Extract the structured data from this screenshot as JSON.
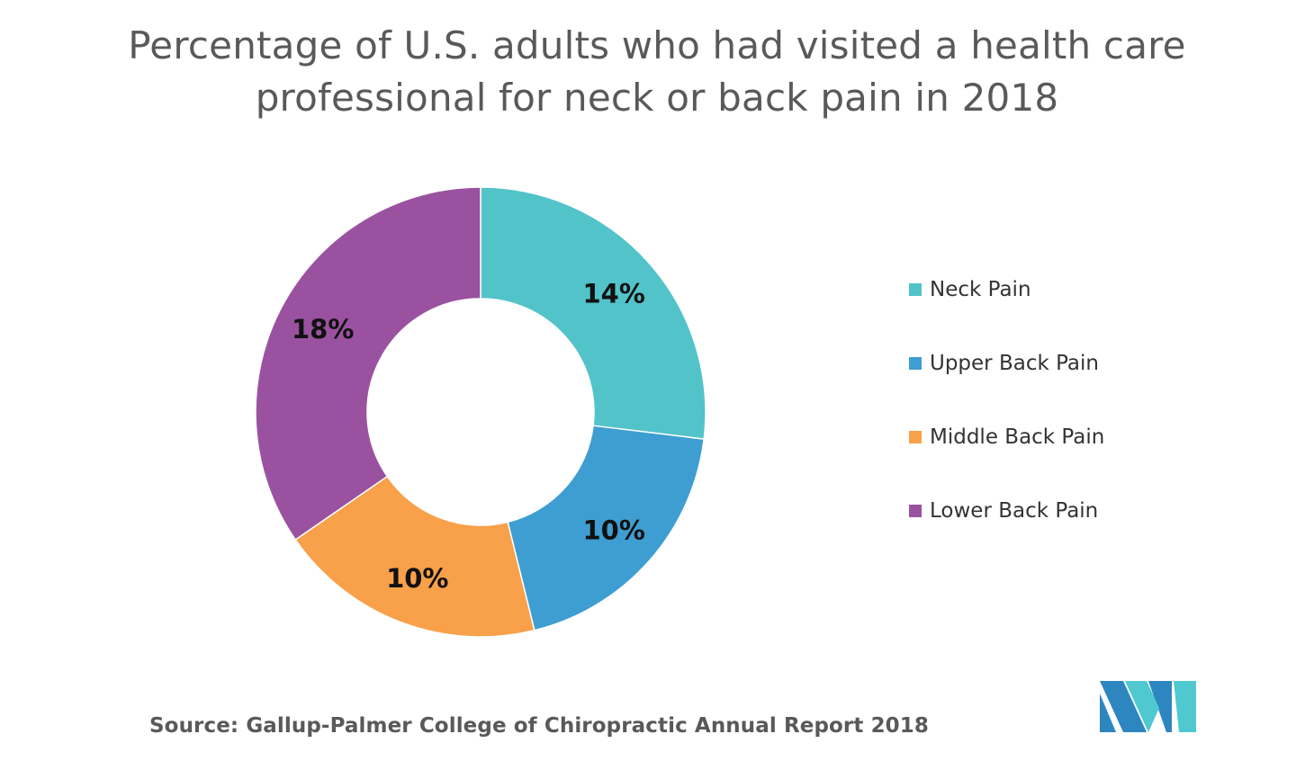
{
  "title": {
    "line1": "Percentage of U.S. adults who had visited a health care",
    "line2": "professional for neck or back pain in 2018"
  },
  "chart_data": {
    "type": "pie",
    "variant": "donut",
    "categories": [
      "Neck Pain",
      "Upper Back Pain",
      "Middle Back Pain",
      "Lower Back Pain"
    ],
    "values": [
      14,
      10,
      10,
      18
    ],
    "labels": [
      "14%",
      "10%",
      "10%",
      "18%"
    ],
    "unit": "%",
    "colors": [
      "#52C3C9",
      "#3E9ED1",
      "#F8A04A",
      "#9A52A0"
    ],
    "start": "12 o'clock",
    "direction": "clockwise",
    "legend_position": "right"
  },
  "source": "Source: Gallup-Palmer College of Chiropractic Annual Report 2018",
  "logo": {
    "icon": "company-logo-icon",
    "colors": [
      "#2E86C1",
      "#4FC9CF"
    ]
  }
}
